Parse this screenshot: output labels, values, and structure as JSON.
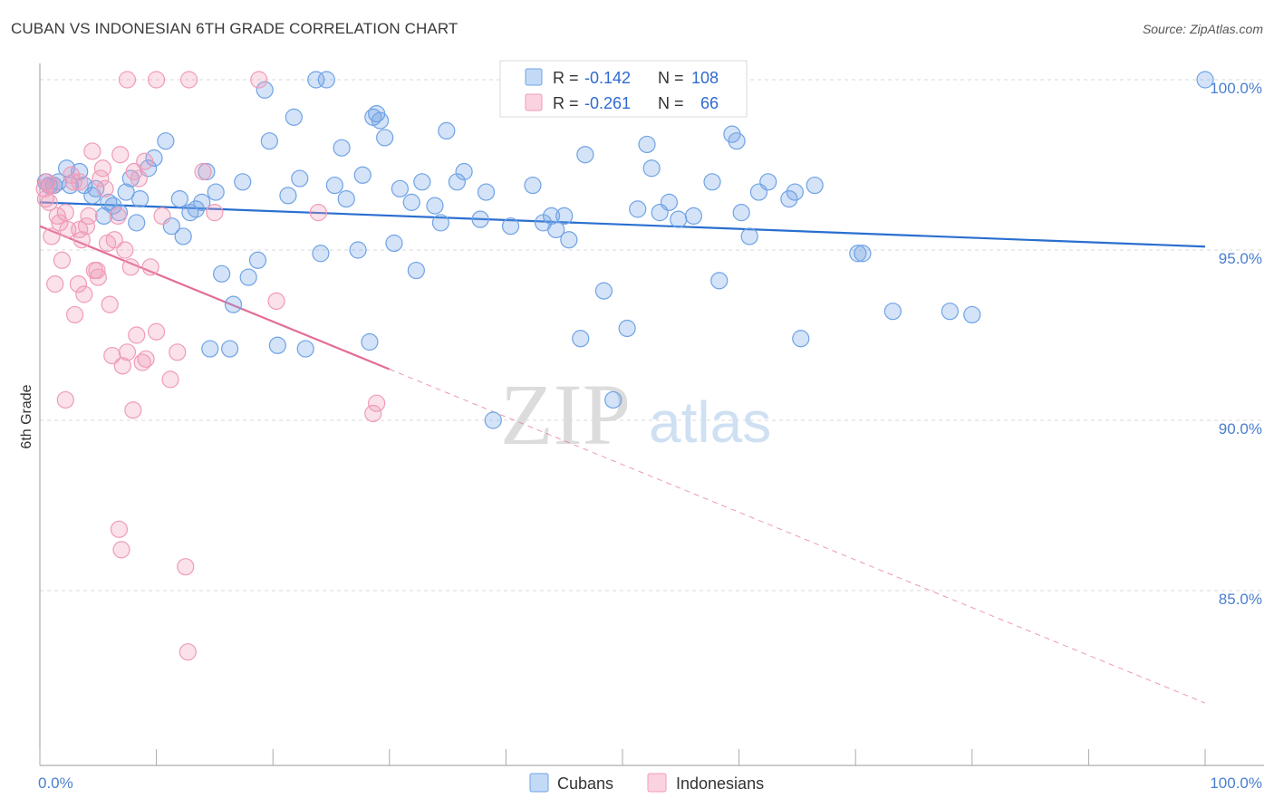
{
  "title": "CUBAN VS INDONESIAN 6TH GRADE CORRELATION CHART",
  "source": "Source: ZipAtlas.com",
  "watermark": {
    "zip": "ZIP",
    "atlas": "atlas"
  },
  "legend_top": [
    {
      "r_label": "R = ",
      "r_value": "-0.142",
      "n_label": "N = ",
      "n_value": "108",
      "color": "#6fa3e6"
    },
    {
      "r_label": "R = ",
      "r_value": "-0.261",
      "n_label": "N = ",
      "n_value": "66",
      "color": "#f09bb8"
    }
  ],
  "legend_bottom": [
    {
      "label": "Cubans",
      "color": "#6fa3e6"
    },
    {
      "label": "Indonesians",
      "color": "#f09bb8"
    }
  ],
  "chart_data": {
    "type": "scatter",
    "title": "CUBAN VS INDONESIAN 6TH GRADE CORRELATION CHART",
    "xlabel": "",
    "ylabel": "6th Grade",
    "xlim": [
      0,
      100
    ],
    "ylim": [
      80.5,
      100.7
    ],
    "x_tick_labels": [
      "0.0%",
      "100.0%"
    ],
    "y_ticks": [
      85,
      90,
      95,
      100
    ],
    "y_tick_labels": [
      "85.0%",
      "90.0%",
      "95.0%",
      "100.0%"
    ],
    "grid": true,
    "legend_placement": "top-center",
    "series": [
      {
        "name": "Cubans",
        "color": "#6fa3e6",
        "line_color": "#2a6fcf",
        "trend": {
          "x": [
            0,
            100
          ],
          "y": [
            96.4,
            95.1
          ]
        },
        "points": [
          [
            0.5,
            97.0
          ],
          [
            0.8,
            96.9
          ],
          [
            1.2,
            96.9
          ],
          [
            1.6,
            97.0
          ],
          [
            2.3,
            97.4
          ],
          [
            2.6,
            96.9
          ],
          [
            3.4,
            97.3
          ],
          [
            3.8,
            96.9
          ],
          [
            4.5,
            96.6
          ],
          [
            4.8,
            96.8
          ],
          [
            5.5,
            96.0
          ],
          [
            5.9,
            96.4
          ],
          [
            6.3,
            96.3
          ],
          [
            6.8,
            96.1
          ],
          [
            7.4,
            96.7
          ],
          [
            7.8,
            97.1
          ],
          [
            8.3,
            95.8
          ],
          [
            8.6,
            96.5
          ],
          [
            9.3,
            97.4
          ],
          [
            9.8,
            97.7
          ],
          [
            10.8,
            98.2
          ],
          [
            11.3,
            95.7
          ],
          [
            12.0,
            96.5
          ],
          [
            12.3,
            95.4
          ],
          [
            12.9,
            96.1
          ],
          [
            13.4,
            96.2
          ],
          [
            13.9,
            96.4
          ],
          [
            14.3,
            97.3
          ],
          [
            14.6,
            92.1
          ],
          [
            15.1,
            96.7
          ],
          [
            15.6,
            94.3
          ],
          [
            16.3,
            92.1
          ],
          [
            16.6,
            93.4
          ],
          [
            17.4,
            97.0
          ],
          [
            17.9,
            94.2
          ],
          [
            18.7,
            94.7
          ],
          [
            19.3,
            99.7
          ],
          [
            19.7,
            98.2
          ],
          [
            20.4,
            92.2
          ],
          [
            21.3,
            96.6
          ],
          [
            21.8,
            98.9
          ],
          [
            22.3,
            97.1
          ],
          [
            22.8,
            92.1
          ],
          [
            23.7,
            100.0
          ],
          [
            24.1,
            94.9
          ],
          [
            24.6,
            100.0
          ],
          [
            25.3,
            96.9
          ],
          [
            25.9,
            98.0
          ],
          [
            26.3,
            96.5
          ],
          [
            27.3,
            95.0
          ],
          [
            27.7,
            97.2
          ],
          [
            28.3,
            92.3
          ],
          [
            28.6,
            98.9
          ],
          [
            28.9,
            99.0
          ],
          [
            29.2,
            98.8
          ],
          [
            29.6,
            98.3
          ],
          [
            30.4,
            95.2
          ],
          [
            30.9,
            96.8
          ],
          [
            31.9,
            96.4
          ],
          [
            32.3,
            94.4
          ],
          [
            32.8,
            97.0
          ],
          [
            33.9,
            96.3
          ],
          [
            34.4,
            95.8
          ],
          [
            34.9,
            98.5
          ],
          [
            35.8,
            97.0
          ],
          [
            36.4,
            97.3
          ],
          [
            37.8,
            95.9
          ],
          [
            38.3,
            96.7
          ],
          [
            38.9,
            90.0
          ],
          [
            40.4,
            95.7
          ],
          [
            42.3,
            96.9
          ],
          [
            43.2,
            95.8
          ],
          [
            43.9,
            96.0
          ],
          [
            44.3,
            95.6
          ],
          [
            45.0,
            96.0
          ],
          [
            45.4,
            95.3
          ],
          [
            46.4,
            92.4
          ],
          [
            46.8,
            97.8
          ],
          [
            48.4,
            93.8
          ],
          [
            49.2,
            90.6
          ],
          [
            50.4,
            92.7
          ],
          [
            51.3,
            96.2
          ],
          [
            52.1,
            98.1
          ],
          [
            52.5,
            97.4
          ],
          [
            53.2,
            96.1
          ],
          [
            54.0,
            96.4
          ],
          [
            54.8,
            95.9
          ],
          [
            56.1,
            96.0
          ],
          [
            57.7,
            97.0
          ],
          [
            58.3,
            94.1
          ],
          [
            59.4,
            98.4
          ],
          [
            59.8,
            98.2
          ],
          [
            60.2,
            96.1
          ],
          [
            60.9,
            95.4
          ],
          [
            61.7,
            96.7
          ],
          [
            62.5,
            97.0
          ],
          [
            64.3,
            96.5
          ],
          [
            64.8,
            96.7
          ],
          [
            65.3,
            92.4
          ],
          [
            66.5,
            96.9
          ],
          [
            70.2,
            94.9
          ],
          [
            70.6,
            94.9
          ],
          [
            73.2,
            93.2
          ],
          [
            78.1,
            93.2
          ],
          [
            80.0,
            93.1
          ],
          [
            100.0,
            100.0
          ]
        ]
      },
      {
        "name": "Indonesians",
        "color": "#f09bb8",
        "line_color": "#e46d96",
        "trend": {
          "x": [
            0,
            30
          ],
          "y": [
            95.7,
            91.5
          ]
        },
        "trend_dashed": {
          "x": [
            30,
            100
          ],
          "y": [
            91.5,
            81.7
          ]
        },
        "points": [
          [
            0.4,
            96.8
          ],
          [
            0.5,
            96.5
          ],
          [
            0.6,
            97.0
          ],
          [
            0.8,
            96.4
          ],
          [
            1.0,
            95.4
          ],
          [
            1.3,
            94.0
          ],
          [
            1.5,
            96.0
          ],
          [
            1.7,
            95.8
          ],
          [
            1.9,
            94.7
          ],
          [
            2.2,
            96.1
          ],
          [
            2.4,
            95.6
          ],
          [
            2.7,
            97.2
          ],
          [
            2.9,
            97.0
          ],
          [
            3.0,
            93.1
          ],
          [
            3.3,
            94.0
          ],
          [
            3.4,
            95.6
          ],
          [
            3.6,
            95.3
          ],
          [
            3.8,
            93.7
          ],
          [
            4.0,
            95.7
          ],
          [
            4.2,
            96.0
          ],
          [
            4.5,
            97.9
          ],
          [
            4.7,
            94.4
          ],
          [
            4.9,
            94.4
          ],
          [
            5.0,
            94.2
          ],
          [
            5.2,
            97.1
          ],
          [
            5.4,
            97.4
          ],
          [
            5.6,
            96.8
          ],
          [
            5.8,
            95.2
          ],
          [
            6.0,
            93.4
          ],
          [
            6.2,
            91.9
          ],
          [
            6.4,
            95.3
          ],
          [
            6.7,
            96.0
          ],
          [
            6.9,
            97.8
          ],
          [
            7.1,
            91.6
          ],
          [
            7.3,
            95.0
          ],
          [
            7.5,
            92.0
          ],
          [
            7.8,
            94.5
          ],
          [
            8.1,
            97.3
          ],
          [
            8.3,
            92.5
          ],
          [
            8.5,
            97.1
          ],
          [
            8.8,
            91.7
          ],
          [
            9.1,
            91.8
          ],
          [
            9.5,
            94.5
          ],
          [
            10.0,
            92.6
          ],
          [
            10.5,
            96.0
          ],
          [
            11.2,
            91.2
          ],
          [
            11.8,
            92.0
          ],
          [
            12.5,
            85.7
          ],
          [
            14.0,
            97.3
          ],
          [
            15.0,
            96.1
          ],
          [
            2.2,
            90.6
          ],
          [
            6.8,
            86.8
          ],
          [
            7.0,
            86.2
          ],
          [
            8.0,
            90.3
          ],
          [
            12.7,
            83.2
          ],
          [
            7.5,
            100.0
          ],
          [
            10.0,
            100.0
          ],
          [
            12.8,
            100.0
          ],
          [
            18.8,
            100.0
          ],
          [
            20.3,
            93.5
          ],
          [
            23.9,
            96.1
          ],
          [
            28.6,
            90.2
          ],
          [
            28.9,
            90.5
          ],
          [
            1.0,
            96.9
          ],
          [
            3.4,
            97.0
          ],
          [
            9.0,
            97.6
          ]
        ]
      }
    ]
  }
}
